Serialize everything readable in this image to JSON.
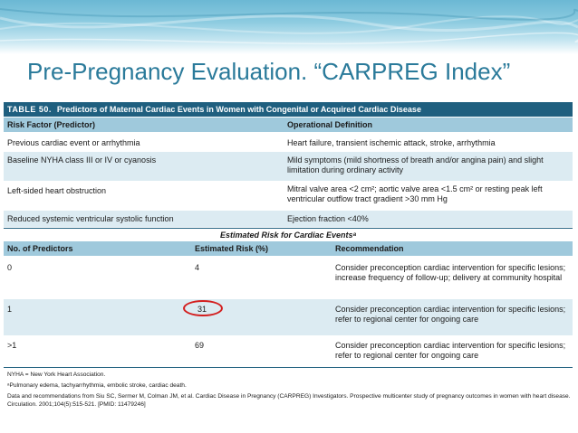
{
  "slide": {
    "title": "Pre-Pregnancy Evaluation. “CARPREG Index”"
  },
  "table": {
    "caption_num": "TABLE 50.",
    "caption_text": "Predictors of Maternal Cardiac Events in Women with Congenital or Acquired Cardiac Disease",
    "headers": {
      "risk_factor": "Risk Factor (Predictor)",
      "operational": "Operational Definition"
    },
    "predictors": [
      {
        "factor": "Previous cardiac event or arrhythmia",
        "definition": "Heart failure, transient ischemic attack, stroke, arrhythmia"
      },
      {
        "factor": "Baseline NYHA class III or IV or cyanosis",
        "definition": "Mild symptoms (mild shortness of breath and/or angina pain) and slight limitation during ordinary activity"
      },
      {
        "factor": "Left-sided heart obstruction",
        "definition": "Mitral valve area <2 cm²; aortic valve area <1.5 cm² or resting peak left ventricular outflow tract gradient >30 mm Hg"
      },
      {
        "factor": "Reduced systemic ventricular systolic function",
        "definition": "Ejection fraction <40%"
      }
    ],
    "risk_title": "Estimated Risk for Cardiac Eventsᵃ",
    "risk_headers": {
      "num": "No. of Predictors",
      "risk": "Estimated Risk (%)",
      "rec": "Recommendation"
    },
    "risk_rows": [
      {
        "num": "0",
        "risk": "4",
        "rec": "Consider preconception cardiac intervention for specific lesions; increase frequency of follow-up; delivery at community hospital"
      },
      {
        "num": "1",
        "risk": "31",
        "rec": "Consider preconception cardiac intervention for specific lesions; refer to regional center for ongoing care"
      },
      {
        "num": ">1",
        "risk": "69",
        "rec": "Consider preconception cardiac intervention for specific lesions; refer to regional center for ongoing care"
      }
    ],
    "footnotes": [
      "NYHA = New York Heart Association.",
      "ᵃPulmonary edema, tachyarrhythmia, embolic stroke, cardiac death.",
      "Data and recommendations from Siu SC, Sermer M, Colman JM, et al. Cardiac Disease in Pregnancy (CARPREG) Investigators. Prospective multicenter study of pregnancy outcomes in women with heart disease. Circulation. 2001;104(5):515-521. [PMID: 11479246]"
    ]
  },
  "colors": {
    "title": "#2a7a9a",
    "caption_bg": "#1f5f7f",
    "header_bg": "#9fc9dc",
    "band_bg": "#dcebf2",
    "highlight_circle": "#d31f1f"
  }
}
